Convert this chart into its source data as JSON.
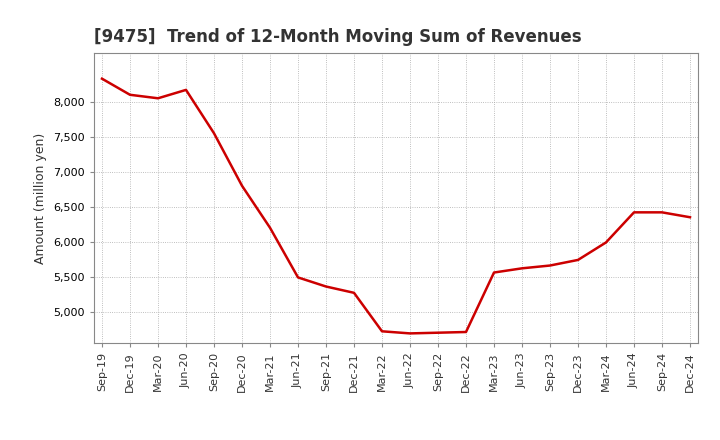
{
  "title": "[9475]  Trend of 12-Month Moving Sum of Revenues",
  "ylabel": "Amount (million yen)",
  "line_color": "#cc0000",
  "background_color": "#ffffff",
  "grid_color": "#aaaaaa",
  "x_labels": [
    "Sep-19",
    "Dec-19",
    "Mar-20",
    "Jun-20",
    "Sep-20",
    "Dec-20",
    "Mar-21",
    "Jun-21",
    "Sep-21",
    "Dec-21",
    "Mar-22",
    "Jun-22",
    "Sep-22",
    "Dec-22",
    "Mar-23",
    "Jun-23",
    "Sep-23",
    "Dec-23",
    "Mar-24",
    "Jun-24",
    "Sep-24",
    "Dec-24"
  ],
  "values": [
    8330,
    8100,
    8050,
    8170,
    7550,
    6800,
    6200,
    5490,
    5360,
    5270,
    4720,
    4690,
    4700,
    4710,
    5560,
    5620,
    5660,
    5740,
    5990,
    6420,
    6420,
    6350
  ],
  "ylim": [
    4550,
    8700
  ],
  "yticks": [
    5000,
    5500,
    6000,
    6500,
    7000,
    7500,
    8000
  ],
  "title_fontsize": 12,
  "title_color": "#333333",
  "tick_label_fontsize": 8,
  "ylabel_fontsize": 9,
  "linewidth": 1.8
}
